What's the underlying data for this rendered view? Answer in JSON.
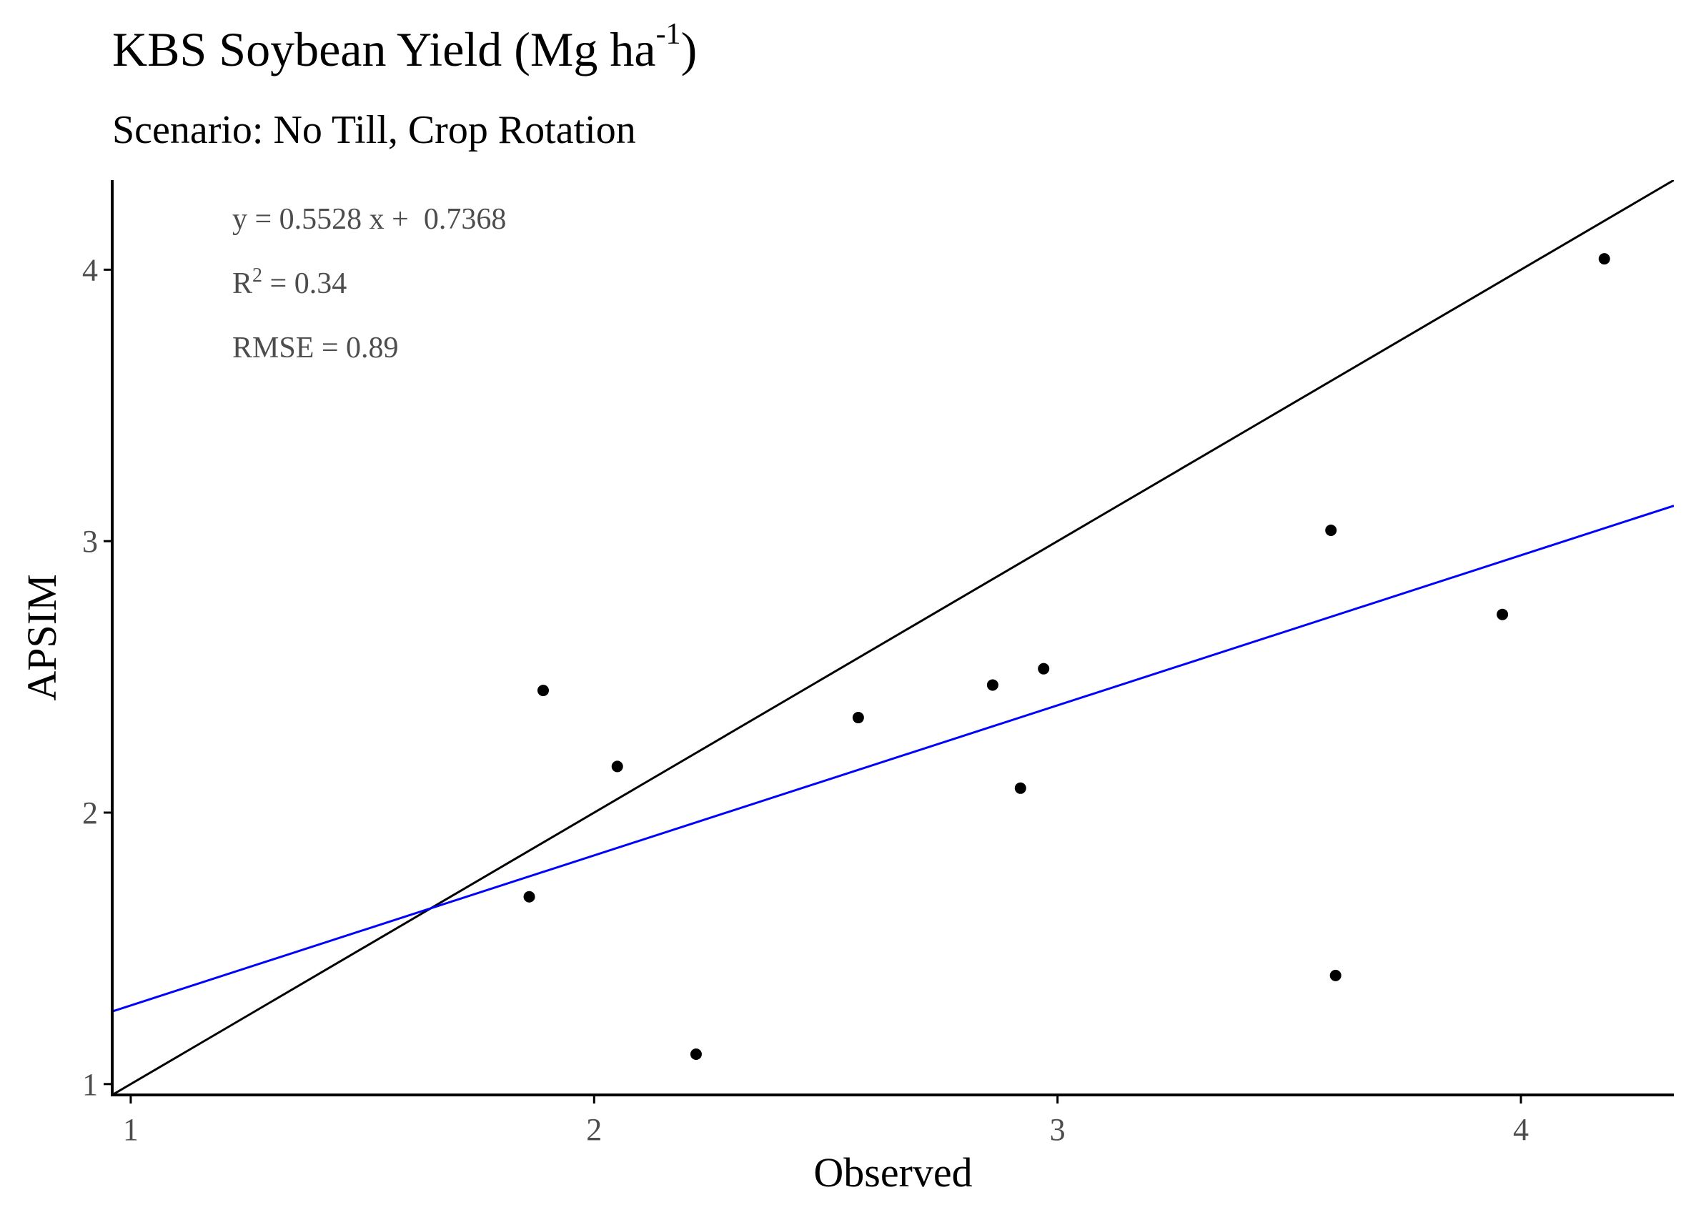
{
  "title": {
    "main": "KBS Soybean Yield (Mg ha",
    "superscript": "-1",
    "close": ")"
  },
  "subtitle": "Scenario: No Till, Crop Rotation",
  "annotations": {
    "equation": "y = 0.5528 x +  0.7368",
    "r2_prefix": "R",
    "r2_sup": "2",
    "r2_rest": " = 0.34",
    "rmse": "RMSE = 0.89"
  },
  "colors": {
    "points": "#000000",
    "identity_line": "#000000",
    "regression_line": "#0000ff",
    "axis": "#000000",
    "tick_label": "#4d4d4d",
    "annotation": "#4d4d4d"
  },
  "chart_data": {
    "type": "scatter",
    "xlabel": "Observed",
    "ylabel": "APSIM",
    "xlim": [
      0.96,
      4.33
    ],
    "ylim": [
      0.96,
      4.33
    ],
    "xticks": [
      1,
      2,
      3,
      4
    ],
    "yticks": [
      1,
      2,
      3,
      4
    ],
    "grid": false,
    "points": [
      {
        "x": 1.86,
        "y": 1.69
      },
      {
        "x": 1.89,
        "y": 2.45
      },
      {
        "x": 2.05,
        "y": 2.17
      },
      {
        "x": 2.22,
        "y": 1.11
      },
      {
        "x": 2.57,
        "y": 2.35
      },
      {
        "x": 2.86,
        "y": 2.47
      },
      {
        "x": 2.92,
        "y": 2.09
      },
      {
        "x": 2.97,
        "y": 2.53
      },
      {
        "x": 3.59,
        "y": 3.04
      },
      {
        "x": 3.6,
        "y": 1.4
      },
      {
        "x": 3.96,
        "y": 2.73
      },
      {
        "x": 4.18,
        "y": 4.04
      }
    ],
    "lines": [
      {
        "kind": "identity",
        "slope": 1,
        "intercept": 0
      },
      {
        "kind": "regression",
        "slope": 0.5528,
        "intercept": 0.7368
      }
    ]
  }
}
